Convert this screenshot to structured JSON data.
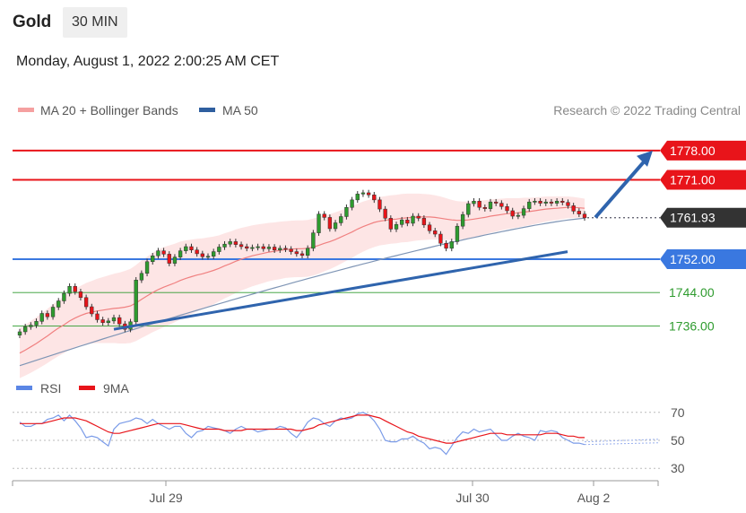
{
  "header": {
    "title": "Gold",
    "interval": "30 MIN"
  },
  "timestamp": "Monday, August 1, 2022 2:00:25 AM CET",
  "legend": {
    "ma20": "MA 20 + Bollinger Bands",
    "ma50": "MA 50",
    "credit": "Research © 2022 Trading Central"
  },
  "rsi_legend": {
    "rsi": "RSI",
    "ma9": "9MA"
  },
  "colors": {
    "resistance": "#e8141a",
    "support": "#3a78e0",
    "target": "#2e9b2e",
    "last": "#333333",
    "ma50": "#2f5f9f",
    "ma20": "#f08080",
    "band": "#fde0e0",
    "up": "#2e9b2e",
    "down": "#e8141a",
    "arrow": "#2f64ad"
  },
  "chart_data": [
    {
      "type": "candlestick",
      "ylim": [
        1726,
        1784
      ],
      "x_ticks": [
        "Jul 29",
        "Jul 30",
        "Aug 2"
      ],
      "levels": [
        {
          "label": "1778.00",
          "value": 1778.0,
          "kind": "resistance"
        },
        {
          "label": "1771.00",
          "value": 1771.0,
          "kind": "resistance"
        },
        {
          "label": "1761.93",
          "value": 1761.93,
          "kind": "last"
        },
        {
          "label": "1752.00",
          "value": 1752.0,
          "kind": "support"
        },
        {
          "label": "1744.00",
          "value": 1744.0,
          "kind": "target"
        },
        {
          "label": "1736.00",
          "value": 1736.0,
          "kind": "target"
        }
      ],
      "close": [
        1734.6,
        1735.8,
        1736.2,
        1737.1,
        1739.0,
        1738.2,
        1740.5,
        1742.0,
        1743.8,
        1745.5,
        1744.2,
        1742.8,
        1740.6,
        1738.9,
        1737.5,
        1736.8,
        1737.2,
        1738.0,
        1736.5,
        1735.2,
        1737.0,
        1747.0,
        1748.6,
        1751.4,
        1752.8,
        1754.0,
        1753.2,
        1751.0,
        1752.5,
        1754.0,
        1755.0,
        1754.2,
        1753.3,
        1752.6,
        1752.7,
        1753.8,
        1754.9,
        1755.6,
        1756.2,
        1755.5,
        1755.0,
        1754.6,
        1754.8,
        1755.0,
        1754.5,
        1754.9,
        1754.2,
        1754.6,
        1754.4,
        1753.8,
        1753.3,
        1752.9,
        1754.6,
        1758.3,
        1762.8,
        1762.0,
        1759.3,
        1760.7,
        1762.2,
        1764.4,
        1766.2,
        1767.6,
        1767.9,
        1767.4,
        1766.2,
        1764.0,
        1761.8,
        1759.2,
        1760.3,
        1761.4,
        1760.6,
        1762.3,
        1761.8,
        1760.2,
        1758.8,
        1758.0,
        1755.8,
        1754.6,
        1756.2,
        1759.9,
        1762.7,
        1765.3,
        1765.9,
        1764.4,
        1764.1,
        1765.7,
        1765.4,
        1764.6,
        1763.6,
        1762.3,
        1762.5,
        1764.1,
        1765.7,
        1765.9,
        1765.4,
        1765.7,
        1765.4,
        1765.9,
        1765.6,
        1764.8,
        1763.5,
        1762.8,
        1761.9
      ],
      "ma20": [
        1729.5,
        1730.2,
        1731.0,
        1731.8,
        1732.7,
        1733.6,
        1734.6,
        1735.5,
        1736.3,
        1737.2,
        1737.9,
        1738.5,
        1739.0,
        1739.3,
        1739.6,
        1739.8,
        1740.0,
        1740.2,
        1740.3,
        1740.5,
        1740.8,
        1741.5,
        1742.4,
        1743.2,
        1744.0,
        1744.7,
        1745.3,
        1745.8,
        1746.3,
        1746.9,
        1747.4,
        1747.8,
        1748.2,
        1748.5,
        1748.9,
        1749.3,
        1749.8,
        1750.4,
        1750.9,
        1751.5,
        1752.0,
        1752.4,
        1752.8,
        1753.1,
        1753.4,
        1753.7,
        1753.9,
        1754.1,
        1754.3,
        1754.4,
        1754.5,
        1754.5,
        1754.6,
        1754.9,
        1755.3,
        1755.8,
        1756.2,
        1756.7,
        1757.3,
        1757.9,
        1758.5,
        1759.2,
        1759.8,
        1760.3,
        1760.8,
        1761.1,
        1761.3,
        1761.5,
        1761.6,
        1761.8,
        1761.9,
        1762.0,
        1762.1,
        1762.1,
        1762.1,
        1762.0,
        1761.8,
        1761.6,
        1761.4,
        1761.3,
        1761.3,
        1761.4,
        1761.6,
        1761.8,
        1762.0,
        1762.3,
        1762.5,
        1762.7,
        1762.9,
        1763.0,
        1763.1,
        1763.3,
        1763.4,
        1763.6,
        1763.8,
        1764.0,
        1764.1,
        1764.2,
        1764.3,
        1764.4,
        1764.4,
        1764.3,
        1764.2
      ],
      "band_width": [
        6.0,
        6.1,
        6.2,
        6.3,
        6.4,
        6.5,
        6.6,
        6.7,
        6.8,
        6.9,
        7.0,
        7.1,
        7.3,
        7.5,
        7.7,
        7.9,
        8.1,
        8.3,
        8.5,
        8.7,
        8.9,
        9.1,
        9.3,
        9.4,
        9.5,
        9.6,
        9.6,
        9.5,
        9.4,
        9.3,
        9.1,
        8.9,
        8.7,
        8.5,
        8.3,
        8.1,
        7.9,
        7.8,
        7.7,
        7.6,
        7.5,
        7.4,
        7.3,
        7.2,
        7.1,
        7.0,
        6.9,
        6.9,
        6.8,
        6.8,
        6.8,
        6.8,
        6.8,
        6.8,
        6.8,
        6.7,
        6.6,
        6.5,
        6.4,
        6.3,
        6.2,
        6.1,
        6.0,
        5.9,
        5.9,
        5.8,
        5.8,
        5.8,
        5.8,
        5.8,
        5.8,
        5.7,
        5.6,
        5.5,
        5.4,
        5.3,
        5.2,
        5.0,
        4.8,
        4.6,
        4.5,
        4.4,
        4.3,
        4.2,
        4.1,
        4.0,
        3.9,
        3.8,
        3.7,
        3.6,
        3.5,
        3.4,
        3.3,
        3.2,
        3.1,
        3.0,
        2.9,
        2.8,
        2.7,
        2.6,
        2.5,
        2.4,
        2.3
      ],
      "ma50": {
        "start": 1726.5,
        "end": 1761.8
      },
      "trendline": {
        "from": [
          0.26,
          1735.2
        ],
        "to": [
          1.1,
          1755.2
        ]
      },
      "projection": {
        "from": 1762.0,
        "to": 1778.0
      }
    },
    {
      "type": "line",
      "title": "RSI",
      "ylim": [
        25,
        75
      ],
      "y_ticks": [
        70,
        50,
        30
      ],
      "rsi": [
        63,
        60,
        60,
        62,
        62,
        65,
        66,
        68,
        64,
        68,
        64,
        59,
        52,
        53,
        52,
        49,
        46,
        58,
        62,
        63,
        64,
        66,
        65,
        62,
        65,
        62,
        60,
        58,
        60,
        60,
        55,
        52,
        56,
        57,
        60,
        59,
        58,
        57,
        55,
        58,
        60,
        58,
        58,
        56,
        57,
        58,
        58,
        60,
        59,
        55,
        52,
        57,
        63,
        66,
        65,
        62,
        60,
        64,
        66,
        65,
        66,
        69,
        70,
        68,
        64,
        58,
        50,
        49,
        49,
        51,
        51,
        53,
        50,
        48,
        44,
        45,
        44,
        40,
        46,
        52,
        56,
        55,
        58,
        56,
        57,
        58,
        54,
        50,
        50,
        53,
        55,
        53,
        52,
        50,
        57,
        56,
        57,
        56,
        52,
        50,
        48,
        48,
        47
      ],
      "ma9": [
        62,
        62,
        62,
        62,
        62,
        63,
        64,
        65,
        66,
        66,
        66,
        65,
        64,
        62,
        60,
        58,
        56,
        55,
        55,
        56,
        57,
        58,
        59,
        60,
        61,
        62,
        62,
        62,
        62,
        62,
        61,
        60,
        59,
        58,
        58,
        58,
        58,
        57,
        57,
        57,
        57,
        58,
        58,
        58,
        58,
        58,
        58,
        58,
        58,
        58,
        57,
        57,
        58,
        59,
        61,
        62,
        63,
        64,
        65,
        66,
        67,
        68,
        68,
        68,
        67,
        66,
        64,
        62,
        60,
        58,
        56,
        55,
        53,
        52,
        51,
        50,
        49,
        48,
        48,
        49,
        50,
        51,
        52,
        53,
        54,
        55,
        55,
        55,
        54,
        54,
        54,
        54,
        54,
        54,
        54,
        55,
        55,
        55,
        54,
        53,
        53,
        52,
        52
      ]
    }
  ]
}
